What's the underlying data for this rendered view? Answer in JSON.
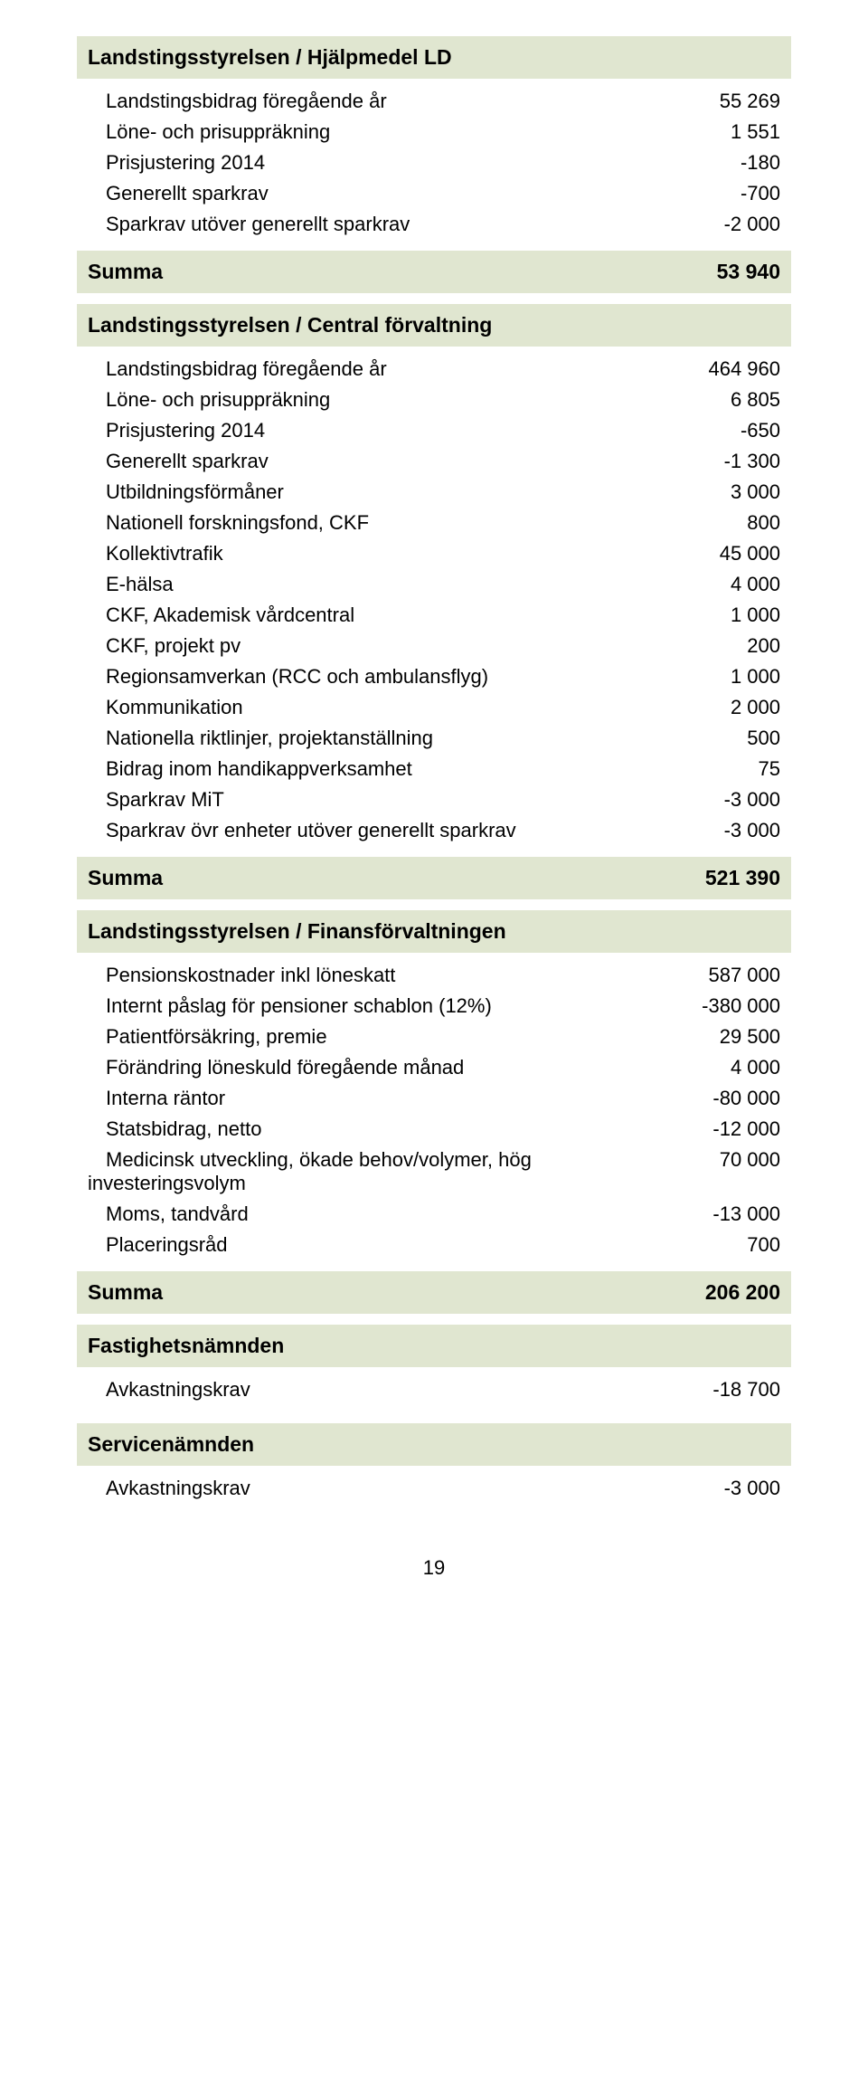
{
  "colors": {
    "band_bg": "#e0e6d0",
    "text": "#000000",
    "page_bg": "#ffffff"
  },
  "typography": {
    "body_fontsize_pt": 16,
    "header_fontsize_pt": 17,
    "font_family": "Arial"
  },
  "sections": {
    "s1": {
      "title": "Landstingsstyrelsen / Hjälpmedel LD",
      "rows": [
        {
          "label": "Landstingsbidrag föregående år",
          "value": "55 269"
        },
        {
          "label": "Löne- och prisuppräkning",
          "value": "1 551"
        },
        {
          "label": "Prisjustering 2014",
          "value": "-180"
        },
        {
          "label": "Generellt sparkrav",
          "value": "-700"
        },
        {
          "label": "Sparkrav utöver generellt sparkrav",
          "value": "-2 000"
        }
      ],
      "summa_label": "Summa",
      "summa_value": "53 940"
    },
    "s2": {
      "title": "Landstingsstyrelsen / Central förvaltning",
      "rows": [
        {
          "label": "Landstingsbidrag föregående år",
          "value": "464 960"
        },
        {
          "label": "Löne- och prisuppräkning",
          "value": "6 805"
        },
        {
          "label": "Prisjustering 2014",
          "value": "-650"
        },
        {
          "label": "Generellt sparkrav",
          "value": "-1 300"
        },
        {
          "label": "Utbildningsförmåner",
          "value": "3 000"
        },
        {
          "label": "Nationell forskningsfond, CKF",
          "value": "800"
        },
        {
          "label": "Kollektivtrafik",
          "value": "45 000"
        },
        {
          "label": "E-hälsa",
          "value": "4 000"
        },
        {
          "label": "CKF, Akademisk vårdcentral",
          "value": "1 000"
        },
        {
          "label": "CKF, projekt pv",
          "value": "200"
        },
        {
          "label": "Regionsamverkan (RCC och ambulansflyg)",
          "value": "1 000"
        },
        {
          "label": "Kommunikation",
          "value": "2 000"
        },
        {
          "label": "Nationella riktlinjer, projektanställning",
          "value": "500"
        },
        {
          "label": "Bidrag inom handikappverksamhet",
          "value": "75"
        },
        {
          "label": "Sparkrav MiT",
          "value": "-3 000"
        },
        {
          "label": "Sparkrav övr enheter utöver generellt sparkrav",
          "value": "-3 000"
        }
      ],
      "summa_label": "Summa",
      "summa_value": "521 390"
    },
    "s3": {
      "title": "Landstingsstyrelsen / Finansförvaltningen",
      "rows": [
        {
          "label": "Pensionskostnader inkl löneskatt",
          "value": "587 000"
        },
        {
          "label": "Internt påslag för pensioner schablon (12%)",
          "value": "-380 000"
        },
        {
          "label": "Patientförsäkring, premie",
          "value": "29 500"
        },
        {
          "label": "Förändring löneskuld föregående månad",
          "value": "4 000"
        },
        {
          "label": "Interna räntor",
          "value": "-80 000"
        },
        {
          "label": "Statsbidrag, netto",
          "value": "-12 000"
        },
        {
          "label": "Medicinsk utveckling, ökade behov/volymer, hög investeringsvolym",
          "value": "70 000",
          "wrap": true
        },
        {
          "label": "Moms, tandvård",
          "value": "-13 000"
        },
        {
          "label": "Placeringsråd",
          "value": "700"
        }
      ],
      "summa_label": "Summa",
      "summa_value": "206 200"
    },
    "s4": {
      "title": "Fastighetsnämnden",
      "rows": [
        {
          "label": "Avkastningskrav",
          "value": "-18 700"
        }
      ]
    },
    "s5": {
      "title": "Servicenämnden",
      "rows": [
        {
          "label": "Avkastningskrav",
          "value": "-3 000"
        }
      ]
    }
  },
  "page_number": "19"
}
